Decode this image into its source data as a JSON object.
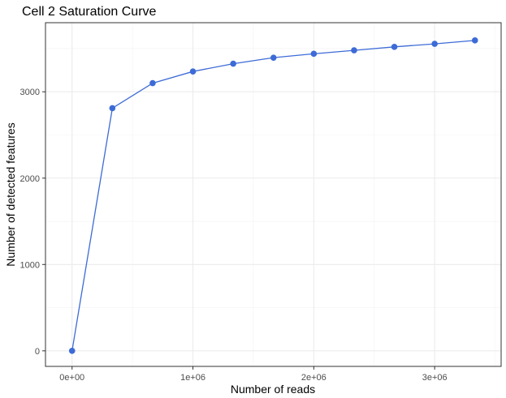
{
  "chart_data": {
    "type": "line",
    "title": "Cell 2 Saturation Curve",
    "xlabel": "Number of reads",
    "ylabel": "Number of detected features",
    "x": [
      0,
      333333,
      666667,
      1000000,
      1333333,
      1666667,
      2000000,
      2333333,
      2666667,
      3000000,
      3333333
    ],
    "series": [
      {
        "values": [
          0,
          2810,
          3100,
          3235,
          3325,
          3395,
          3440,
          3480,
          3520,
          3555,
          3595
        ]
      }
    ],
    "xlim": [
      -220000,
      3550000
    ],
    "ylim": [
      -180,
      3800
    ],
    "x_ticks": [
      0,
      1000000,
      2000000,
      3000000
    ],
    "x_tick_labels": [
      "0e+00",
      "1e+06",
      "2e+06",
      "3e+06"
    ],
    "y_ticks": [
      0,
      1000,
      2000,
      3000
    ],
    "y_tick_labels": [
      "0",
      "1000",
      "2000",
      "3000"
    ],
    "grid": true,
    "legend": "none",
    "colors": {
      "series": "#3d6bd6",
      "grid_major": "#ebebeb",
      "grid_minor": "#f3f3f3",
      "panel_border": "#333333",
      "tick_text": "#4d4d4d"
    }
  }
}
